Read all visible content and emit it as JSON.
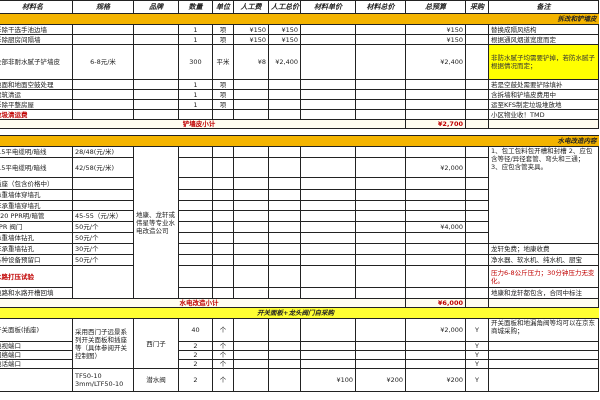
{
  "header": [
    "材料名",
    "规格",
    "品牌",
    "数量",
    "单位",
    "人工费",
    "人工总价",
    "材料单价",
    "材料总价",
    "总预算",
    "采购",
    "备注"
  ],
  "s1": {
    "title": "拆改和铲墙皮",
    "rows": [
      {
        "item": "拆除干选手池边墙",
        "qty": "1",
        "unit": "项",
        "labor": "¥150",
        "labor_total": "¥150",
        "total": "¥150",
        "remark": "替换成隔风结构"
      },
      {
        "item": "拆除厨房间隔墙",
        "qty": "1",
        "unit": "项",
        "labor": "¥150",
        "labor_total": "¥150",
        "total": "¥150",
        "remark": "根据通风烟道宽度而定"
      },
      {
        "item": "全部非耐水腻子铲墙皮",
        "spec": "6-8元/米",
        "qty": "300",
        "unit": "平米",
        "labor": "¥8",
        "labor_total": "¥2,400",
        "total": "¥2,400",
        "remark": "非防水腻子均需要铲掉，若防水腻子根据情况而定；"
      },
      {
        "item": "地面和地面空鼓处理",
        "qty": "1",
        "unit": "项",
        "remark": "若是空鼓处需要铲除填补"
      },
      {
        "item": "建筑清运",
        "qty": "1",
        "unit": "项",
        "remark": "含拆墙和铲墙皮费用中"
      },
      {
        "item": "拆除平整房屋",
        "qty": "1",
        "unit": "项",
        "remark": "运至KFS制定垃圾堆放地"
      },
      {
        "item": "垃圾清运费",
        "remark": "小区物业收！TMD"
      }
    ],
    "subtotal_label": "铲墙皮小计",
    "subtotal": "¥2,700"
  },
  "s2": {
    "title": "水电改造内容",
    "brand": "地康、龙轩或伟星等专业水电改造公司",
    "rows": [
      {
        "item": "1.5平电缆明/暗线",
        "spec": "28/48(元/米)"
      },
      {
        "item": "2.5平电缆明/暗线",
        "spec": "42/58(元/米)",
        "total": "¥2,000"
      },
      {
        "item": "插座（包含价格中）"
      },
      {
        "item": "承重墙体穿墙孔"
      },
      {
        "item": "非承重墙穿墙孔"
      },
      {
        "item": "Φ20 PPR明/暗管",
        "spec": "45-55（元/米）"
      },
      {
        "item": "PPR 阀门",
        "spec": "50元/个",
        "total": "¥4,000"
      },
      {
        "item": "承重墙体钻孔",
        "spec": "50元/个"
      },
      {
        "item": "非承重墙钻孔",
        "spec": "30元/个",
        "remark": "龙轩免费；地康收费"
      },
      {
        "item": "各种设备预留口",
        "spec": "50元/个",
        "remark": "净水器、软水机、纯水机、厨宝"
      },
      {
        "item": "水路打压试验",
        "remark": "压力6-8公斤压力；30分钟压力无变化。"
      },
      {
        "item": "电路和水路开槽回填",
        "remark": "地康和龙轩都包含，合同中标注"
      }
    ],
    "remark_main": "1、包工包料包开槽和封槽 2、应包含等径/异径套管、弯头和三通； 3、应包含管夹具。",
    "subtotal_label": "水电改造小计",
    "subtotal": "¥6,000"
  },
  "s3": {
    "title": "开关面板+龙头阀门自采购",
    "spec": "采用西门子远景系列开关面板和插座等（具体参阅开关控制图）",
    "brand": "西门子",
    "rows": [
      {
        "item": "开关面板(插座)",
        "qty": "40",
        "unit": "个",
        "total": "¥2,000",
        "buy": "Y"
      },
      {
        "item": "电视端口",
        "qty": "2",
        "unit": "个",
        "buy": "Y"
      },
      {
        "item": "网络端口",
        "qty": "2",
        "unit": "个",
        "buy": "Y"
      },
      {
        "item": "电话端口",
        "qty": "2",
        "unit": "个",
        "buy": "Y"
      }
    ],
    "remark": "开关面板和地漏角阀等均可以在京东商城采购；",
    "last": {
      "spec": "TF50-10 3mm/LTF50-10",
      "brand": "潜水阀",
      "qty": "2",
      "unit": "个",
      "mat_unit": "¥100",
      "mat_total": "¥200",
      "total": "¥200",
      "buy": "Y"
    }
  },
  "colors": {
    "section": "#f4b400",
    "section3": "#ffff33",
    "highlight": "#ffff00",
    "red": "#c00000"
  }
}
